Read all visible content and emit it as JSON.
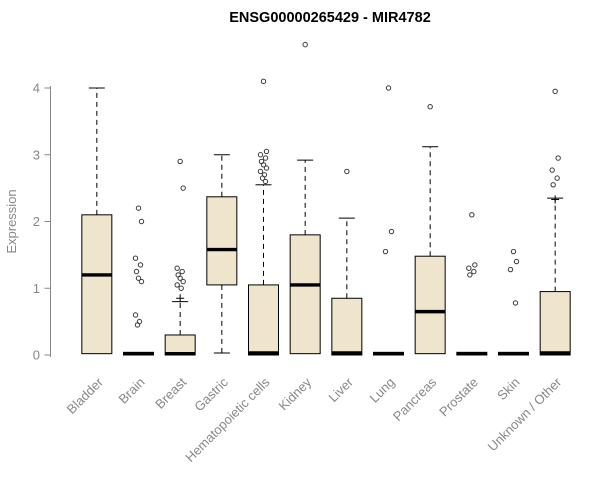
{
  "page": {
    "title": "ENSG00000265429 - MIR4782"
  },
  "chart_data": {
    "type": "boxplot",
    "title": "ENSG00000265429 - MIR4782",
    "xlabel": "",
    "ylabel": "Expression",
    "ylim": [
      0,
      4.8
    ],
    "yticks": [
      0,
      1,
      2,
      3,
      4
    ],
    "grid": false,
    "legend": "none",
    "categories": [
      "Bladder",
      "Brain",
      "Breast",
      "Gastric",
      "Hematopoietic cells",
      "Kidney",
      "Liver",
      "Lung",
      "Pancreas",
      "Prostate",
      "Skin",
      "Unknown / Other"
    ],
    "boxes": [
      {
        "label": "Bladder",
        "whisker_low": 0.02,
        "q1": 0.02,
        "median": 1.2,
        "q3": 2.1,
        "whisker_high": 4.0,
        "outliers": []
      },
      {
        "label": "Brain",
        "whisker_low": 0,
        "q1": 0,
        "median": 0.02,
        "q3": 0.04,
        "whisker_high": 0.04,
        "outliers": [
          2.2,
          2.0,
          1.45,
          1.35,
          1.25,
          1.15,
          1.1,
          0.6,
          0.5,
          0.45
        ]
      },
      {
        "label": "Breast",
        "whisker_low": 0,
        "q1": 0,
        "median": 0.02,
        "q3": 0.3,
        "whisker_high": 0.8,
        "mean": 0.85,
        "outliers": [
          2.9,
          2.5,
          1.3,
          1.25,
          1.2,
          1.15,
          1.1,
          1.05,
          1.0
        ]
      },
      {
        "label": "Gastric",
        "whisker_low": 0.03,
        "q1": 1.05,
        "median": 1.58,
        "q3": 2.37,
        "whisker_high": 3.0,
        "outliers": []
      },
      {
        "label": "Hematopoietic cells",
        "whisker_low": 0,
        "q1": 0,
        "median": 0.03,
        "q3": 1.05,
        "whisker_high": 2.55,
        "outliers": [
          4.1,
          3.05,
          3.0,
          2.95,
          2.9,
          2.85,
          2.8,
          2.75,
          2.7,
          2.65,
          2.6
        ]
      },
      {
        "label": "Kidney",
        "whisker_low": 0.02,
        "q1": 0.02,
        "median": 1.05,
        "q3": 1.8,
        "whisker_high": 2.92,
        "outliers": [
          4.65
        ]
      },
      {
        "label": "Liver",
        "whisker_low": 0,
        "q1": 0,
        "median": 0.03,
        "q3": 0.85,
        "whisker_high": 2.05,
        "outliers": [
          2.75
        ]
      },
      {
        "label": "Lung",
        "whisker_low": 0,
        "q1": 0,
        "median": 0.02,
        "q3": 0.04,
        "whisker_high": 0.04,
        "outliers": [
          4.0,
          1.85,
          1.55
        ]
      },
      {
        "label": "Pancreas",
        "whisker_low": 0.02,
        "q1": 0.02,
        "median": 0.65,
        "q3": 1.48,
        "whisker_high": 3.12,
        "outliers": [
          3.72
        ]
      },
      {
        "label": "Prostate",
        "whisker_low": 0,
        "q1": 0,
        "median": 0.02,
        "q3": 0.04,
        "whisker_high": 0.04,
        "outliers": [
          2.1,
          1.35,
          1.3,
          1.25,
          1.2
        ]
      },
      {
        "label": "Skin",
        "whisker_low": 0,
        "q1": 0,
        "median": 0.02,
        "q3": 0.04,
        "whisker_high": 0.04,
        "outliers": [
          1.55,
          1.4,
          1.28,
          0.78
        ]
      },
      {
        "label": "Unknown / Other",
        "whisker_low": 0,
        "q1": 0,
        "median": 0.03,
        "q3": 0.95,
        "whisker_high": 2.35,
        "mean": 2.33,
        "outliers": [
          3.95,
          2.95,
          2.77,
          2.65,
          2.55
        ]
      }
    ],
    "style": {
      "box_fill": "#EEE5CC",
      "box_stroke": "#000000",
      "median_color": "#000000",
      "whisker_color": "#000000",
      "outlier_color": "#3a3a3a",
      "axis_color": "#878787",
      "title_color": "#000000"
    }
  }
}
